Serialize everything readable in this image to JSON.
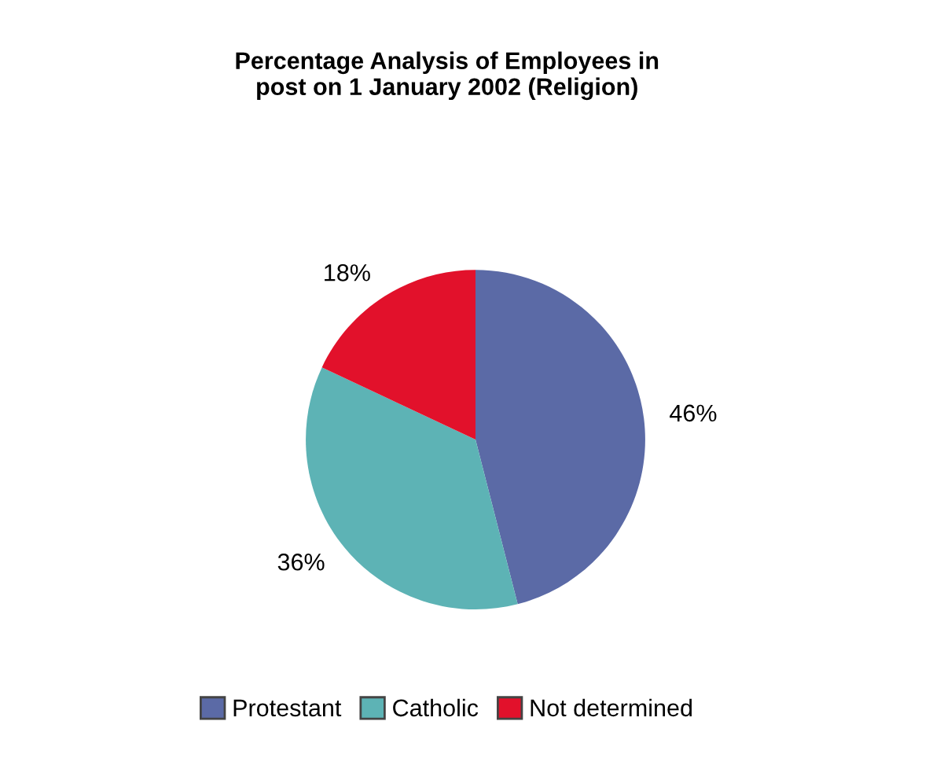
{
  "chart_data": {
    "type": "pie",
    "title": "Percentage Analysis of Employees in\npost on 1 January 2002 (Religion)",
    "categories": [
      "Protestant",
      "Catholic",
      "Not determined"
    ],
    "values": [
      46,
      36,
      18
    ],
    "colors": [
      "#5b6aa6",
      "#5db3b5",
      "#e2112b"
    ],
    "value_labels": [
      "46%",
      "36%",
      "18%"
    ],
    "legend": "bottom"
  }
}
